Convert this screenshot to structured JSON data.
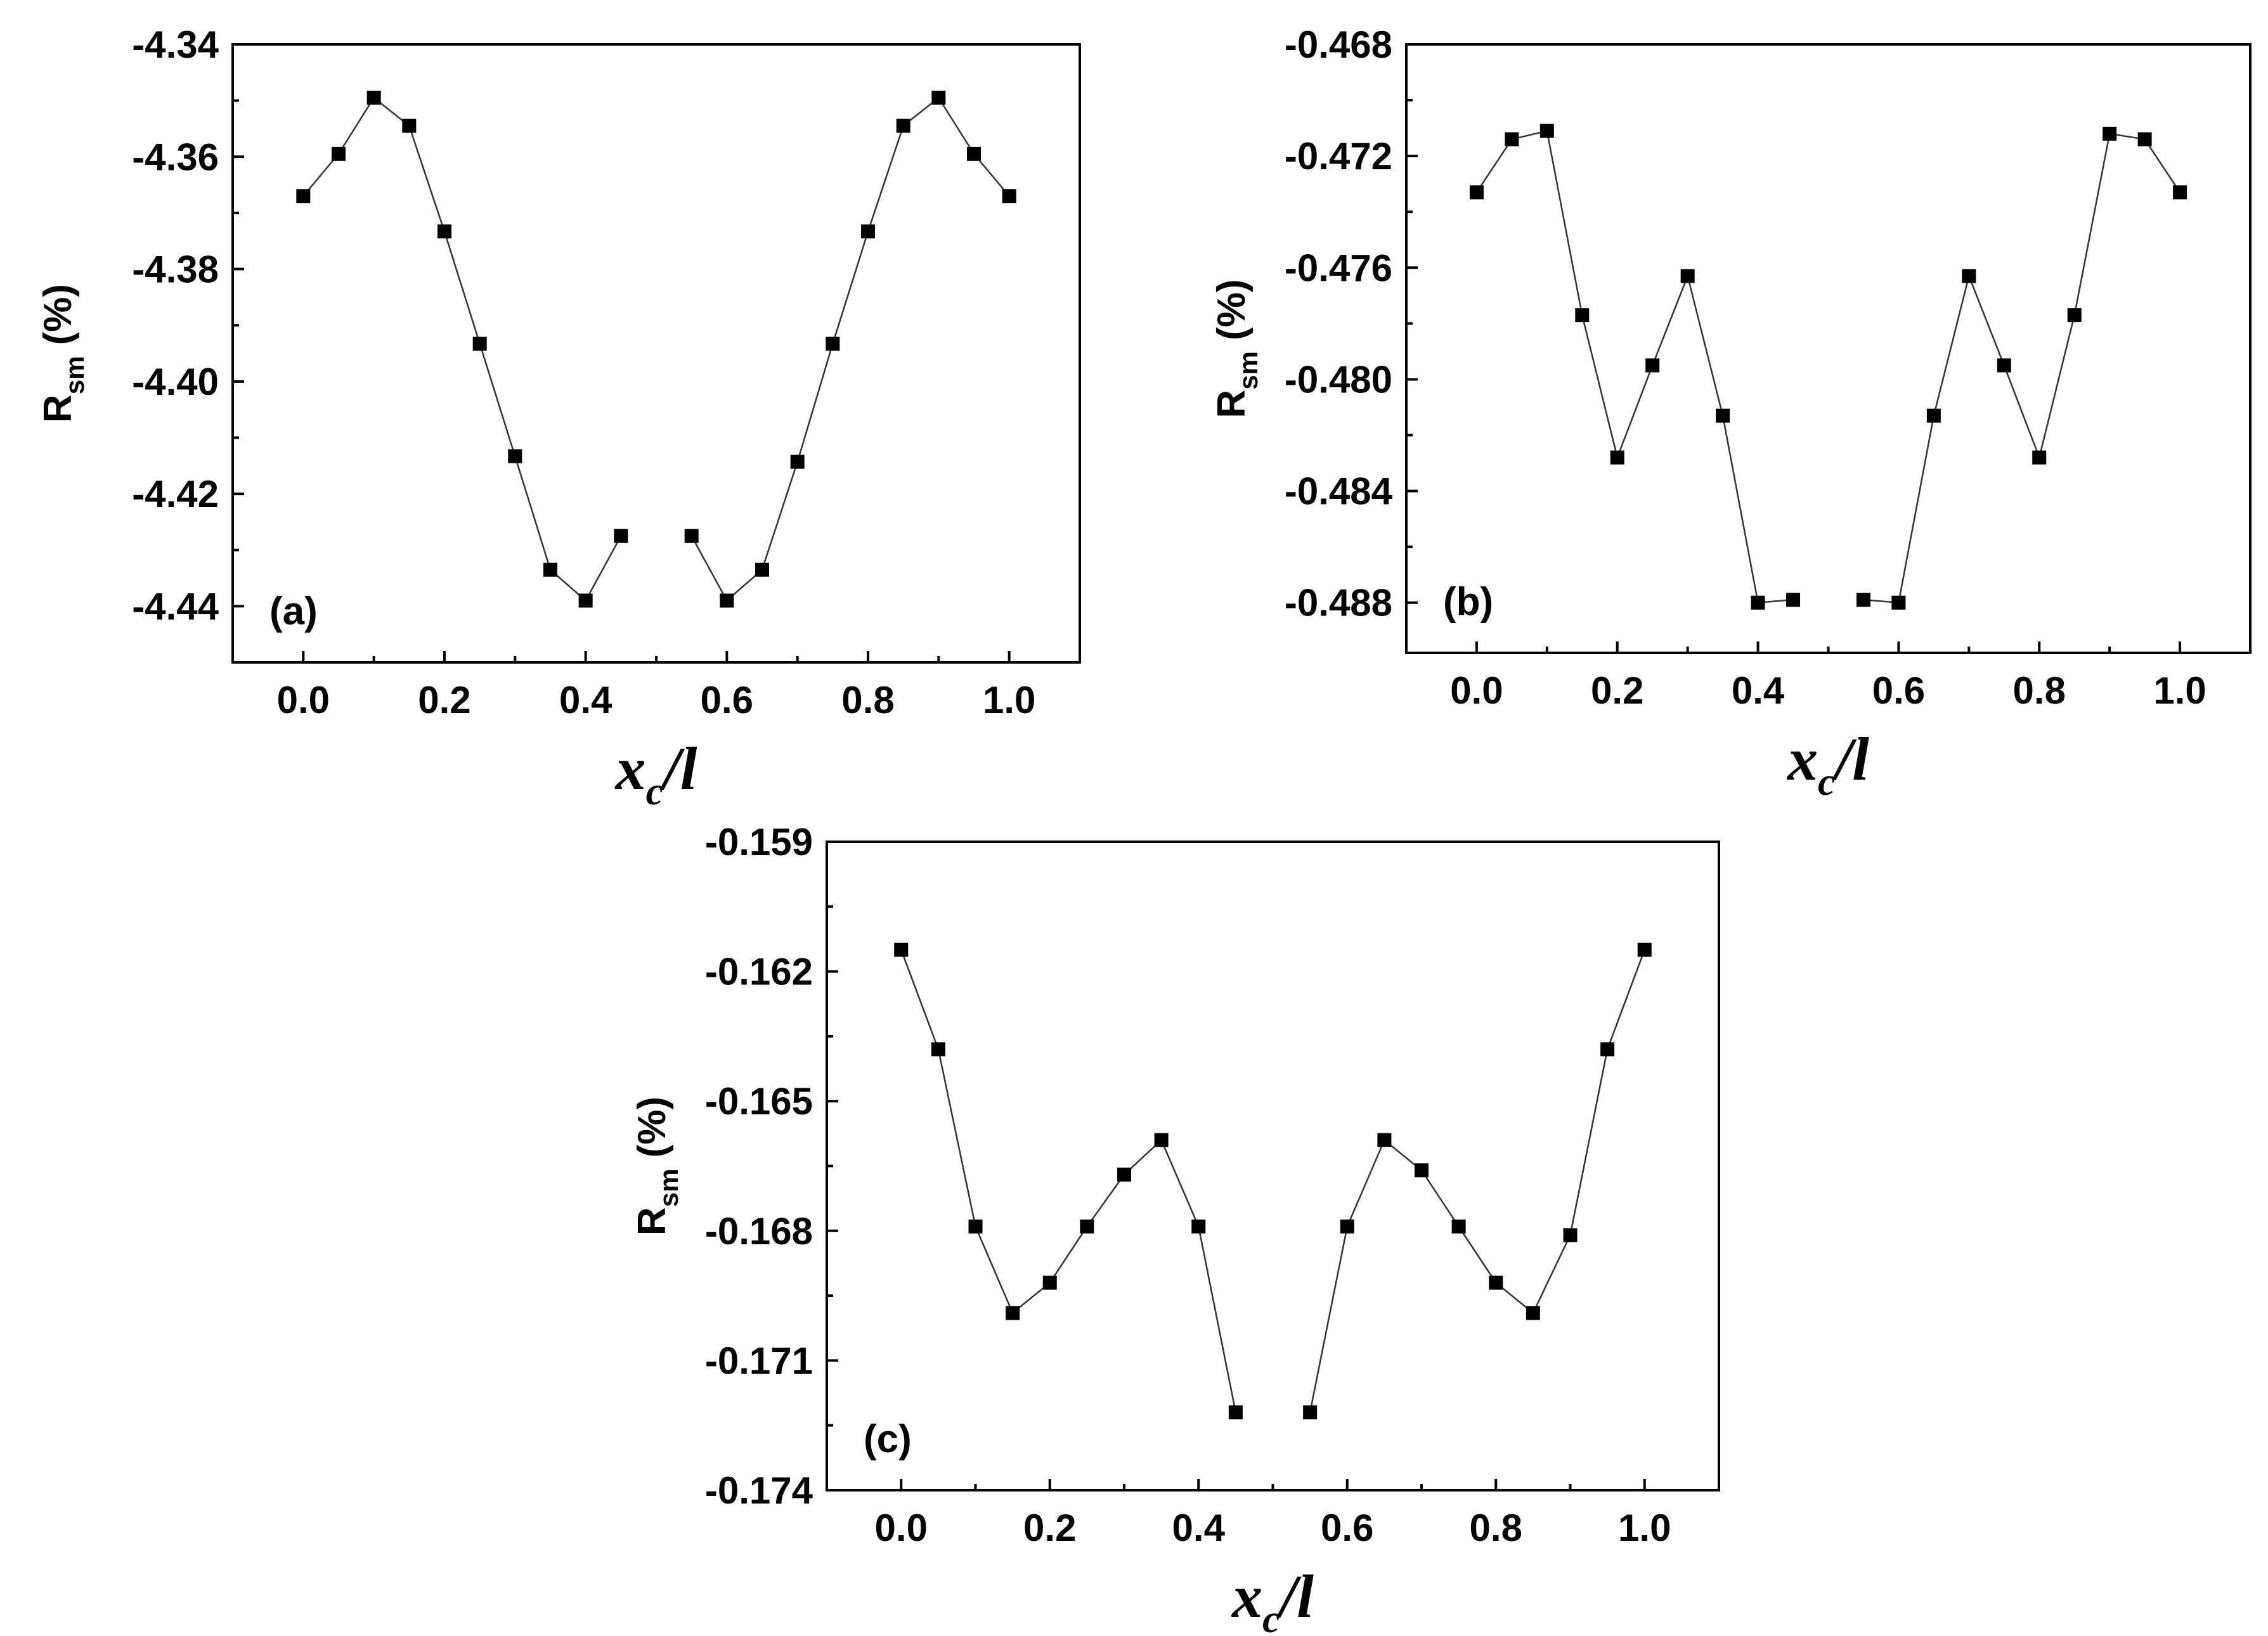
{
  "chart_data": [
    {
      "type": "scatter",
      "panel_label": "(a)",
      "ylabel": "R",
      "ylabel_sub": "sm",
      "ylabel_unit": " (%)",
      "xlabel": "x",
      "xlabel_sub": "c",
      "xlabel_suffix": "/l",
      "xlim": [
        -0.1,
        1.1
      ],
      "ylim": [
        -4.45,
        -4.34
      ],
      "xticks": [
        0.0,
        0.2,
        0.4,
        0.6,
        0.8,
        1.0
      ],
      "xtick_labels": [
        "0.0",
        "0.2",
        "0.4",
        "0.6",
        "0.8",
        "1.0"
      ],
      "yticks": [
        -4.34,
        -4.36,
        -4.38,
        -4.4,
        -4.42,
        -4.44
      ],
      "ytick_labels": [
        "-4.34",
        "-4.36",
        "-4.38",
        "-4.40",
        "-4.42",
        "-4.44"
      ],
      "grid": false,
      "series": [
        {
          "x": [
            0.0,
            0.05,
            0.1,
            0.15,
            0.2,
            0.25,
            0.3,
            0.35,
            0.4,
            0.45
          ],
          "y": [
            -4.367,
            -4.3595,
            -4.3495,
            -4.3545,
            -4.3733,
            -4.3933,
            -4.4133,
            -4.4335,
            -4.439,
            -4.4275
          ]
        },
        {
          "x": [
            0.55,
            0.6,
            0.65,
            0.7,
            0.75,
            0.8,
            0.85,
            0.9,
            0.95,
            1.0
          ],
          "y": [
            -4.4275,
            -4.439,
            -4.4335,
            -4.4143,
            -4.3933,
            -4.3733,
            -4.3545,
            -4.3495,
            -4.3595,
            -4.367
          ]
        }
      ]
    },
    {
      "type": "scatter",
      "panel_label": "(b)",
      "ylabel": "R",
      "ylabel_sub": "sm",
      "ylabel_unit": " (%)",
      "xlabel": "x",
      "xlabel_sub": "c",
      "xlabel_suffix": "/l",
      "xlim": [
        -0.1,
        1.1
      ],
      "ylim": [
        -0.4898,
        -0.468
      ],
      "xticks": [
        0.0,
        0.2,
        0.4,
        0.6,
        0.8,
        1.0
      ],
      "xtick_labels": [
        "0.0",
        "0.2",
        "0.4",
        "0.6",
        "0.8",
        "1.0"
      ],
      "yticks": [
        -0.468,
        -0.472,
        -0.476,
        -0.48,
        -0.484,
        -0.488
      ],
      "ytick_labels": [
        "-0.468",
        "-0.472",
        "-0.476",
        "-0.480",
        "-0.484",
        "-0.488"
      ],
      "grid": false,
      "series": [
        {
          "x": [
            0.0,
            0.05,
            0.1,
            0.15,
            0.2,
            0.25,
            0.3,
            0.35,
            0.4,
            0.45
          ],
          "y": [
            -0.4733,
            -0.4714,
            -0.4711,
            -0.4777,
            -0.4828,
            -0.4795,
            -0.4763,
            -0.4813,
            -0.488,
            -0.4879
          ]
        },
        {
          "x": [
            0.55,
            0.6,
            0.65,
            0.7,
            0.75,
            0.8,
            0.85,
            0.9,
            0.95,
            1.0
          ],
          "y": [
            -0.4879,
            -0.488,
            -0.4813,
            -0.4763,
            -0.4795,
            -0.4828,
            -0.4777,
            -0.4712,
            -0.4714,
            -0.4733
          ]
        }
      ]
    },
    {
      "type": "scatter",
      "panel_label": "(c)",
      "ylabel": "R",
      "ylabel_sub": "sm",
      "ylabel_unit": " (%)",
      "xlabel": "x",
      "xlabel_sub": "c",
      "xlabel_suffix": "/l",
      "xlim": [
        -0.1,
        1.1
      ],
      "ylim": [
        -0.174,
        -0.159
      ],
      "xticks": [
        0.0,
        0.2,
        0.4,
        0.6,
        0.8,
        1.0
      ],
      "xtick_labels": [
        "0.0",
        "0.2",
        "0.4",
        "0.6",
        "0.8",
        "1.0"
      ],
      "yticks": [
        -0.159,
        -0.162,
        -0.165,
        -0.168,
        -0.171,
        -0.174
      ],
      "ytick_labels": [
        "-0.159",
        "-0.162",
        "-0.165",
        "-0.168",
        "-0.171",
        "-0.174"
      ],
      "grid": false,
      "series": [
        {
          "x": [
            0.0,
            0.05,
            0.1,
            0.15,
            0.2,
            0.25,
            0.3,
            0.35,
            0.4,
            0.45
          ],
          "y": [
            -0.1615,
            -0.1638,
            -0.1679,
            -0.1699,
            -0.1692,
            -0.1679,
            -0.1667,
            -0.1659,
            -0.1679,
            -0.1722
          ]
        },
        {
          "x": [
            0.55,
            0.6,
            0.65,
            0.7,
            0.75,
            0.8,
            0.85,
            0.9,
            0.95,
            1.0
          ],
          "y": [
            -0.1722,
            -0.1679,
            -0.1659,
            -0.1666,
            -0.1679,
            -0.1692,
            -0.1699,
            -0.1681,
            -0.1638,
            -0.1615
          ]
        }
      ]
    }
  ]
}
